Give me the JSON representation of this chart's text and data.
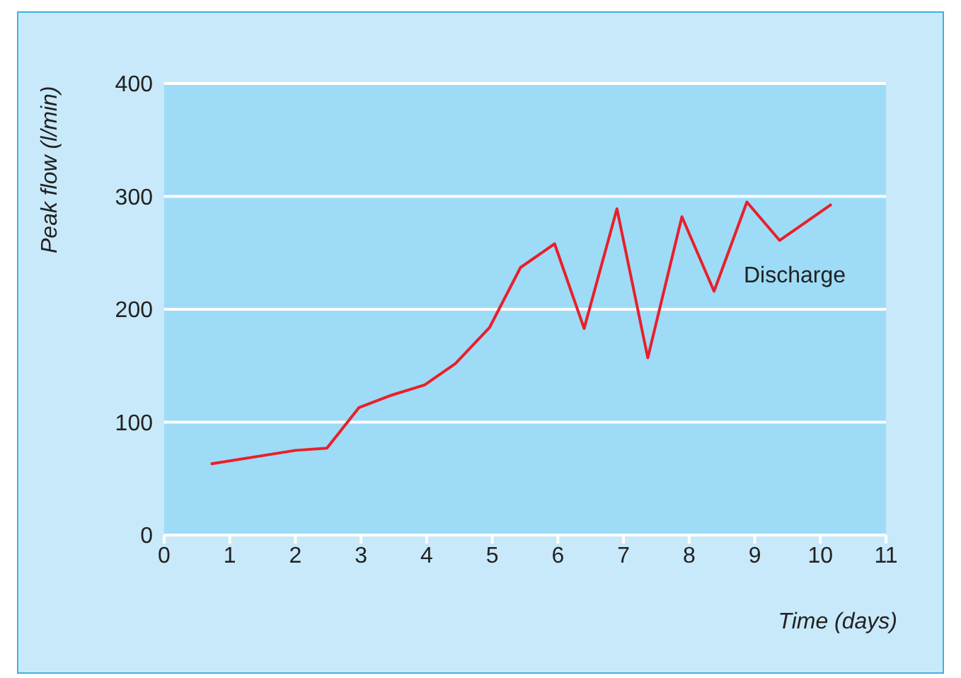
{
  "chart_data": {
    "type": "line",
    "xlabel": "Time (days)",
    "ylabel": "Peak flow (l/min)",
    "xlim": [
      0,
      11
    ],
    "xticks": [
      0,
      1,
      2,
      3,
      4,
      5,
      6,
      7,
      8,
      9,
      10,
      11
    ],
    "ylim": [
      0,
      400
    ],
    "yticks": [
      0,
      100,
      200,
      300,
      400
    ],
    "grid": "y",
    "legend": false,
    "marker": "none",
    "line_style": "solid",
    "series": [
      {
        "name": "Discharge",
        "color": "#e8202a",
        "x": [
          0.71,
          2.0,
          2.48,
          2.97,
          3.47,
          3.97,
          4.44,
          4.96,
          5.43,
          5.95,
          6.4,
          6.9,
          7.37,
          7.89,
          8.38,
          8.88,
          9.38,
          10.17
        ],
        "values": [
          63,
          75,
          77,
          113,
          124,
          133,
          152,
          184,
          237,
          258,
          183,
          289,
          157,
          282,
          216,
          295,
          261,
          293
        ]
      }
    ]
  }
}
